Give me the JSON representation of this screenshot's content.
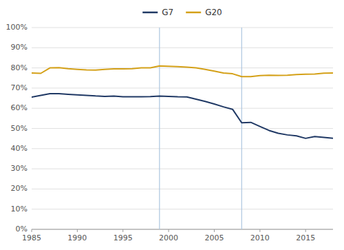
{
  "chart_data": {
    "type": "line",
    "x": [
      1985,
      1986,
      1987,
      1988,
      1989,
      1990,
      1991,
      1992,
      1993,
      1994,
      1995,
      1996,
      1997,
      1998,
      1999,
      2000,
      2001,
      2002,
      2003,
      2004,
      2005,
      2006,
      2007,
      2008,
      2009,
      2010,
      2011,
      2012,
      2013,
      2014,
      2015,
      2016,
      2017,
      2018
    ],
    "series": [
      {
        "name": "G7",
        "color": "#1f3864",
        "values": [
          0.655,
          0.664,
          0.672,
          0.672,
          0.669,
          0.666,
          0.664,
          0.661,
          0.659,
          0.66,
          0.657,
          0.657,
          0.657,
          0.658,
          0.66,
          0.659,
          0.657,
          0.656,
          0.645,
          0.634,
          0.621,
          0.607,
          0.595,
          0.528,
          0.53,
          0.51,
          0.49,
          0.476,
          0.468,
          0.463,
          0.451,
          0.46,
          0.456,
          0.451
        ]
      },
      {
        "name": "G20",
        "color": "#d4a017",
        "values": [
          0.775,
          0.773,
          0.8,
          0.801,
          0.796,
          0.793,
          0.79,
          0.789,
          0.793,
          0.795,
          0.795,
          0.796,
          0.8,
          0.8,
          0.81,
          0.808,
          0.806,
          0.804,
          0.8,
          0.793,
          0.784,
          0.775,
          0.771,
          0.757,
          0.757,
          0.762,
          0.764,
          0.763,
          0.764,
          0.767,
          0.769,
          0.77,
          0.774,
          0.775
        ]
      }
    ],
    "vlines": {
      "x": [
        1999,
        2008
      ],
      "color": "#adc6e0"
    },
    "xlim": [
      1985,
      2018
    ],
    "xticks": [
      1985,
      1990,
      1995,
      2000,
      2005,
      2010,
      2015
    ],
    "ylim": [
      0.0,
      1.0
    ],
    "yticks": [
      {
        "value": 0.0,
        "label": "0%"
      },
      {
        "value": 0.1,
        "label": "10%"
      },
      {
        "value": 0.2,
        "label": "20%"
      },
      {
        "value": 0.3,
        "label": "30%"
      },
      {
        "value": 0.4,
        "label": "40%"
      },
      {
        "value": 0.5,
        "label": "50%"
      },
      {
        "value": 0.6,
        "label": "60%"
      },
      {
        "value": 0.7,
        "label": "70%"
      },
      {
        "value": 0.8,
        "label": "80%"
      },
      {
        "value": 0.9,
        "label": "90%"
      },
      {
        "value": 1.0,
        "label": "100%"
      }
    ],
    "grid": true,
    "legend": "top"
  }
}
